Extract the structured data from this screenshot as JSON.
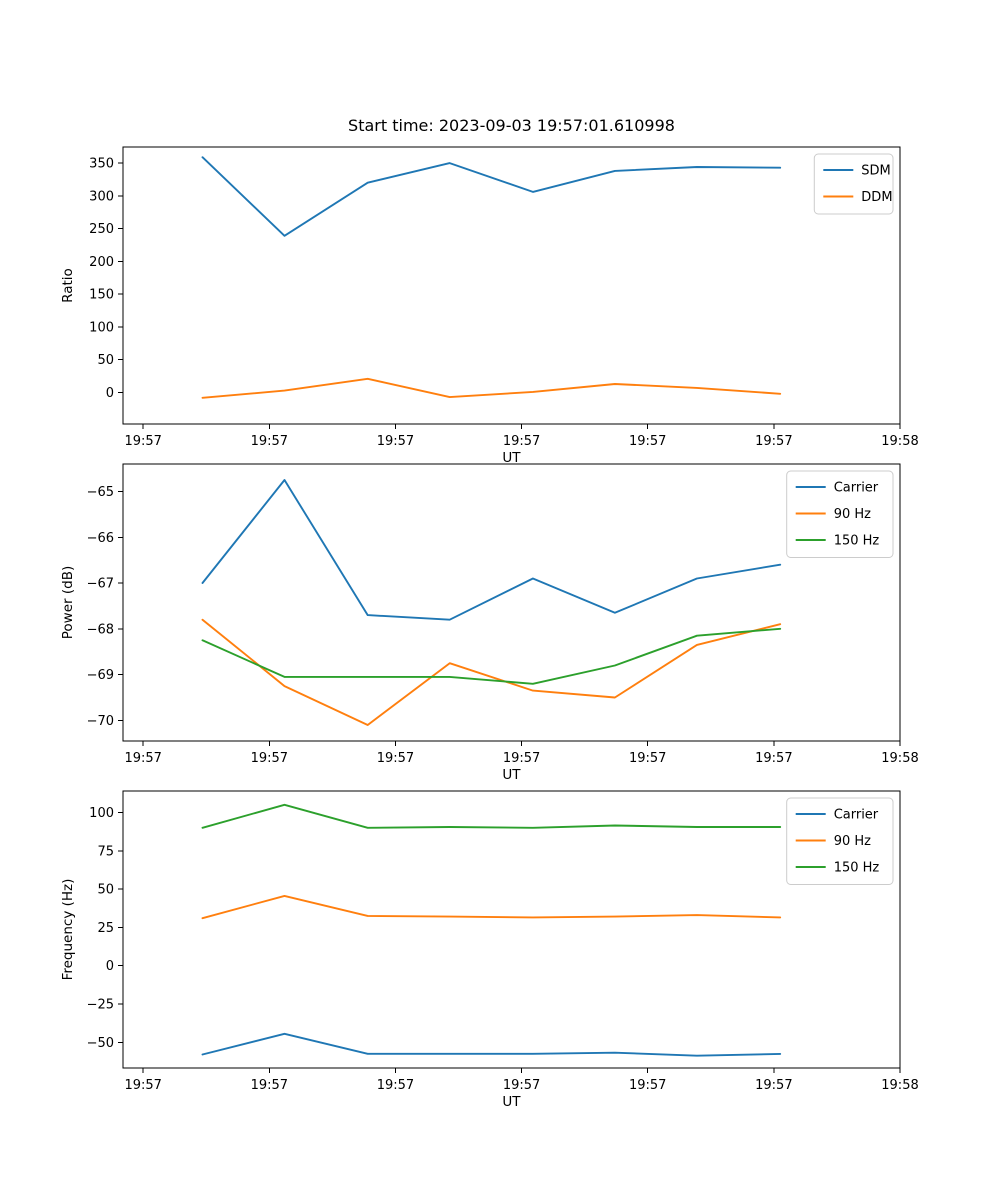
{
  "figure": {
    "title": "Start time: 2023-09-03 19:57:01.610998",
    "background": "#ffffff"
  },
  "chart_data": [
    {
      "type": "line",
      "name": "ratio",
      "title": "",
      "xlabel": "UT",
      "ylabel": "Ratio",
      "x_unit": "seconds after 19:57:00 UT",
      "x": [
        4.7,
        11.2,
        17.8,
        24.3,
        30.9,
        37.4,
        43.9,
        50.5
      ],
      "series": [
        {
          "name": "SDM",
          "color": "#1f77b4",
          "values": [
            359,
            239,
            320,
            350,
            306,
            338,
            344,
            343
          ]
        },
        {
          "name": "DDM",
          "color": "#ff7f0e",
          "values": [
            -8,
            3,
            21,
            -7,
            1,
            13,
            7,
            -2
          ]
        }
      ],
      "ylim": [
        -48,
        374.5
      ],
      "yticks": [
        350,
        300,
        250,
        200,
        150,
        100,
        50,
        0
      ],
      "xlim": [
        -1.6,
        60
      ],
      "xticks": [
        0,
        10,
        20,
        30,
        40,
        50,
        60
      ],
      "xtick_labels": [
        "19:57",
        "19:57",
        "19:57",
        "19:57",
        "19:57",
        "19:57",
        "19:58"
      ],
      "legend_position": "upper right",
      "grid": false
    },
    {
      "type": "line",
      "name": "power",
      "title": "",
      "xlabel": "UT",
      "ylabel": "Power (dB)",
      "x_unit": "seconds after 19:57:00 UT",
      "x": [
        4.7,
        11.2,
        17.8,
        24.3,
        30.9,
        37.4,
        43.9,
        50.5
      ],
      "series": [
        {
          "name": "Carrier",
          "color": "#1f77b4",
          "values": [
            -67.0,
            -64.75,
            -67.7,
            -67.8,
            -66.9,
            -67.65,
            -66.9,
            -66.6
          ]
        },
        {
          "name": "90 Hz",
          "color": "#ff7f0e",
          "values": [
            -67.8,
            -69.25,
            -70.1,
            -68.75,
            -69.35,
            -69.5,
            -68.35,
            -67.9
          ]
        },
        {
          "name": "150 Hz",
          "color": "#2ca02c",
          "values": [
            -68.25,
            -69.05,
            -69.05,
            -69.05,
            -69.2,
            -68.8,
            -68.15,
            -68.0
          ]
        }
      ],
      "ylim": [
        -70.45,
        -64.4
      ],
      "yticks": [
        -65,
        -66,
        -67,
        -68,
        -69,
        -70
      ],
      "xlim": [
        -1.6,
        60
      ],
      "xticks": [
        0,
        10,
        20,
        30,
        40,
        50,
        60
      ],
      "xtick_labels": [
        "19:57",
        "19:57",
        "19:57",
        "19:57",
        "19:57",
        "19:57",
        "19:58"
      ],
      "legend_position": "upper right",
      "grid": false
    },
    {
      "type": "line",
      "name": "frequency",
      "title": "",
      "xlabel": "UT",
      "ylabel": "Frequency (Hz)",
      "x_unit": "seconds after 19:57:00 UT",
      "x": [
        4.7,
        11.2,
        17.8,
        24.3,
        30.9,
        37.4,
        43.9,
        50.5
      ],
      "series": [
        {
          "name": "Carrier",
          "color": "#1f77b4",
          "values": [
            -58,
            -44.5,
            -57.5,
            -57.5,
            -57.5,
            -56.8,
            -58.8,
            -57.6
          ]
        },
        {
          "name": "90 Hz",
          "color": "#ff7f0e",
          "values": [
            31,
            45.5,
            32.5,
            32,
            31.5,
            32,
            33,
            31.5
          ]
        },
        {
          "name": "150 Hz",
          "color": "#2ca02c",
          "values": [
            90,
            105,
            90,
            90.5,
            90,
            91.5,
            90.5,
            90.5
          ]
        }
      ],
      "ylim": [
        -66.8,
        114
      ],
      "yticks": [
        100,
        75,
        50,
        25,
        0,
        -25,
        -50
      ],
      "xlim": [
        -1.6,
        60
      ],
      "xticks": [
        0,
        10,
        20,
        30,
        40,
        50,
        60
      ],
      "xtick_labels": [
        "19:57",
        "19:57",
        "19:57",
        "19:57",
        "19:57",
        "19:57",
        "19:58"
      ],
      "legend_position": "upper right",
      "grid": false
    }
  ]
}
